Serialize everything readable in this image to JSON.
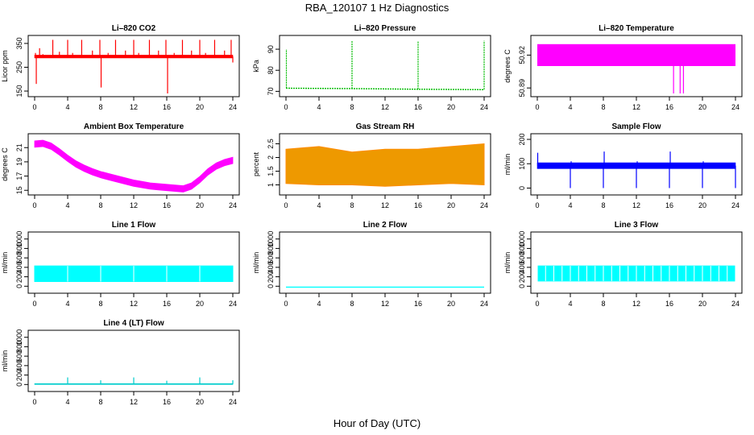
{
  "figure": {
    "title": "RBA_120107  1 Hz Diagnostics",
    "xlabel": "Hour of Day (UTC)"
  },
  "chart_data": [
    {
      "id": "co2",
      "type": "line",
      "title": "Li–820 CO2",
      "ylabel": "Licor ppm",
      "color": "#ff0000",
      "xlim": [
        0,
        24
      ],
      "ylim": [
        140,
        370
      ],
      "xticks": [
        0,
        4,
        8,
        12,
        16,
        20,
        24
      ],
      "yticks": [
        150,
        250,
        350
      ],
      "baseline": {
        "x": [
          0,
          24
        ],
        "y": [
          295,
          295
        ],
        "band": 6
      },
      "spikes": [
        {
          "x": 0.1,
          "y": 310
        },
        {
          "x": 0.2,
          "y": 180
        },
        {
          "x": 0.6,
          "y": 330
        },
        {
          "x": 1.0,
          "y": 305
        },
        {
          "x": 2.2,
          "y": 365
        },
        {
          "x": 3.0,
          "y": 315
        },
        {
          "x": 4.0,
          "y": 365
        },
        {
          "x": 4.6,
          "y": 310
        },
        {
          "x": 5.7,
          "y": 365
        },
        {
          "x": 7.0,
          "y": 320
        },
        {
          "x": 7.9,
          "y": 365
        },
        {
          "x": 8.05,
          "y": 165
        },
        {
          "x": 8.9,
          "y": 310
        },
        {
          "x": 9.8,
          "y": 365
        },
        {
          "x": 11.0,
          "y": 320
        },
        {
          "x": 12.0,
          "y": 365
        },
        {
          "x": 12.6,
          "y": 310
        },
        {
          "x": 13.9,
          "y": 365
        },
        {
          "x": 15.0,
          "y": 320
        },
        {
          "x": 15.9,
          "y": 365
        },
        {
          "x": 16.1,
          "y": 140
        },
        {
          "x": 16.9,
          "y": 310
        },
        {
          "x": 17.9,
          "y": 365
        },
        {
          "x": 19.0,
          "y": 320
        },
        {
          "x": 20.0,
          "y": 365
        },
        {
          "x": 20.7,
          "y": 310
        },
        {
          "x": 21.8,
          "y": 365
        },
        {
          "x": 23.0,
          "y": 320
        },
        {
          "x": 23.8,
          "y": 365
        },
        {
          "x": 24.0,
          "y": 270
        }
      ]
    },
    {
      "id": "pressure",
      "type": "line",
      "title": "Li–820 Pressure",
      "ylabel": "kPa",
      "color": "#00bb00",
      "dashed": true,
      "xlim": [
        0,
        24
      ],
      "ylim": [
        69,
        95
      ],
      "xticks": [
        0,
        4,
        8,
        12,
        16,
        20,
        24
      ],
      "yticks": [
        70,
        80,
        90
      ],
      "baseline": {
        "x": [
          0,
          8,
          16,
          24
        ],
        "y": [
          71.5,
          71.3,
          71.0,
          70.8
        ],
        "band": 0
      },
      "spikes": [
        {
          "x": 0.05,
          "y": 90
        },
        {
          "x": 8.0,
          "y": 94
        },
        {
          "x": 16.0,
          "y": 94
        },
        {
          "x": 24.0,
          "y": 94
        }
      ]
    },
    {
      "id": "temperature",
      "type": "area",
      "title": "Li–820 Temperature",
      "ylabel": "degrees C",
      "color": "#ff00ff",
      "xlim": [
        0,
        24
      ],
      "ylim": [
        50.885,
        50.935
      ],
      "xticks": [
        0,
        4,
        8,
        12,
        16,
        20,
        24
      ],
      "yticks": [
        50.89,
        50.92
      ],
      "block": {
        "x": [
          0,
          24
        ],
        "y": [
          50.91,
          50.93
        ]
      },
      "dips": [
        {
          "x": 16.5,
          "y": 50.885
        },
        {
          "x": 17.3,
          "y": 50.885
        },
        {
          "x": 17.7,
          "y": 50.885
        }
      ]
    },
    {
      "id": "ambient",
      "type": "area",
      "title": "Ambient Box Temperature",
      "ylabel": "degrees C",
      "color": "#ff00ff",
      "xlim": [
        0,
        24
      ],
      "ylim": [
        14.8,
        22.5
      ],
      "xticks": [
        0,
        4,
        8,
        12,
        16,
        20,
        24
      ],
      "yticks": [
        15,
        17,
        19,
        21
      ],
      "x": [
        0,
        1,
        2,
        3,
        4,
        5,
        6,
        7,
        8,
        9,
        10,
        11,
        12,
        13,
        14,
        15,
        16,
        17,
        18,
        19,
        20,
        21,
        22,
        23,
        24
      ],
      "y": [
        21.5,
        21.6,
        21.2,
        20.4,
        19.5,
        18.7,
        18.1,
        17.6,
        17.2,
        16.9,
        16.6,
        16.3,
        16.0,
        15.8,
        15.6,
        15.5,
        15.4,
        15.3,
        15.2,
        15.6,
        16.5,
        17.6,
        18.4,
        18.9,
        19.2
      ],
      "band": 0.9
    },
    {
      "id": "rh",
      "type": "area",
      "title": "Gas Stream RH",
      "ylabel": "percent",
      "color": "#ee9900",
      "edge": "#ff8c00",
      "xlim": [
        0,
        24
      ],
      "ylim": [
        0.75,
        2.75
      ],
      "xticks": [
        0,
        4,
        8,
        12,
        16,
        20,
        24
      ],
      "yticks": [
        1.0,
        1.5,
        2.0,
        2.5
      ],
      "x": [
        0,
        4,
        8,
        12,
        16,
        20,
        24
      ],
      "low": [
        1.05,
        1.0,
        1.0,
        0.95,
        1.0,
        1.05,
        1.0
      ],
      "high": [
        2.3,
        2.4,
        2.2,
        2.3,
        2.3,
        2.4,
        2.5
      ]
    },
    {
      "id": "sample",
      "type": "line",
      "title": "Sample Flow",
      "ylabel": "ml/min",
      "color": "#0000ff",
      "xlim": [
        0,
        24
      ],
      "ylim": [
        -15,
        210
      ],
      "xticks": [
        0,
        4,
        8,
        12,
        16,
        20,
        24
      ],
      "yticks": [
        0,
        100,
        200
      ],
      "baseline": {
        "x": [
          0,
          24
        ],
        "y": [
          92,
          92
        ],
        "band": 12
      },
      "spikes": [
        {
          "x": 0.05,
          "y": 145
        },
        {
          "x": 4.0,
          "y": 0
        },
        {
          "x": 4.1,
          "y": 110
        },
        {
          "x": 8.0,
          "y": 0
        },
        {
          "x": 8.1,
          "y": 150
        },
        {
          "x": 12.0,
          "y": 0
        },
        {
          "x": 12.1,
          "y": 110
        },
        {
          "x": 16.0,
          "y": 0
        },
        {
          "x": 16.1,
          "y": 150
        },
        {
          "x": 20.0,
          "y": 0
        },
        {
          "x": 20.1,
          "y": 110
        },
        {
          "x": 24.0,
          "y": 0
        }
      ]
    },
    {
      "id": "line1",
      "type": "area",
      "title": "Line 1 Flow",
      "ylabel": "ml/min",
      "color": "#00ffff",
      "xlim": [
        0,
        24
      ],
      "ylim": [
        -80,
        1080
      ],
      "xticks": [
        0,
        4,
        8,
        12,
        16,
        20,
        24
      ],
      "yticks": [
        0,
        200,
        400,
        600,
        800,
        1000
      ],
      "x": [
        0,
        24
      ],
      "low": [
        100,
        100
      ],
      "high": [
        430,
        430
      ],
      "gaps": [
        4,
        8,
        12,
        16,
        20,
        24
      ]
    },
    {
      "id": "line2",
      "type": "line",
      "title": "Line 2 Flow",
      "ylabel": "ml/min",
      "color": "#00ffff",
      "xlim": [
        0,
        24
      ],
      "ylim": [
        -80,
        1080
      ],
      "xticks": [
        0,
        4,
        8,
        12,
        16,
        20,
        24
      ],
      "yticks": [
        0,
        200,
        400,
        600,
        800,
        1000
      ],
      "baseline": {
        "x": [
          0,
          24
        ],
        "y": [
          -20,
          -20
        ],
        "band": 0
      },
      "spikes": []
    },
    {
      "id": "line3",
      "type": "area",
      "title": "Line 3 Flow",
      "ylabel": "ml/min",
      "color": "#00ffff",
      "xlim": [
        0,
        24
      ],
      "ylim": [
        -80,
        1080
      ],
      "xticks": [
        0,
        4,
        8,
        12,
        16,
        20,
        24
      ],
      "yticks": [
        0,
        200,
        400,
        600,
        800,
        1000
      ],
      "x": [
        0.1,
        23.9
      ],
      "low": [
        110,
        110
      ],
      "high": [
        430,
        430
      ],
      "gaps": [
        1,
        2,
        3,
        4,
        5,
        6,
        7,
        8,
        9,
        10,
        11,
        12,
        13,
        14,
        15,
        16,
        17,
        18,
        19,
        20,
        21,
        22,
        23
      ]
    },
    {
      "id": "line4",
      "type": "line",
      "title": "Line 4 (LT) Flow",
      "ylabel": "ml/min",
      "color": "#00cccc",
      "xlim": [
        0,
        24
      ],
      "ylim": [
        -80,
        1080
      ],
      "xticks": [
        0,
        4,
        8,
        12,
        16,
        20,
        24
      ],
      "yticks": [
        0,
        200,
        400,
        600,
        800,
        1000
      ],
      "baseline": {
        "x": [
          0,
          24
        ],
        "y": [
          10,
          10
        ],
        "band": 10
      },
      "spikes": [
        {
          "x": 4.0,
          "y": 150
        },
        {
          "x": 8.0,
          "y": 90
        },
        {
          "x": 12.0,
          "y": 150
        },
        {
          "x": 16.0,
          "y": 80
        },
        {
          "x": 20.0,
          "y": 150
        },
        {
          "x": 24.0,
          "y": 90
        }
      ]
    }
  ]
}
